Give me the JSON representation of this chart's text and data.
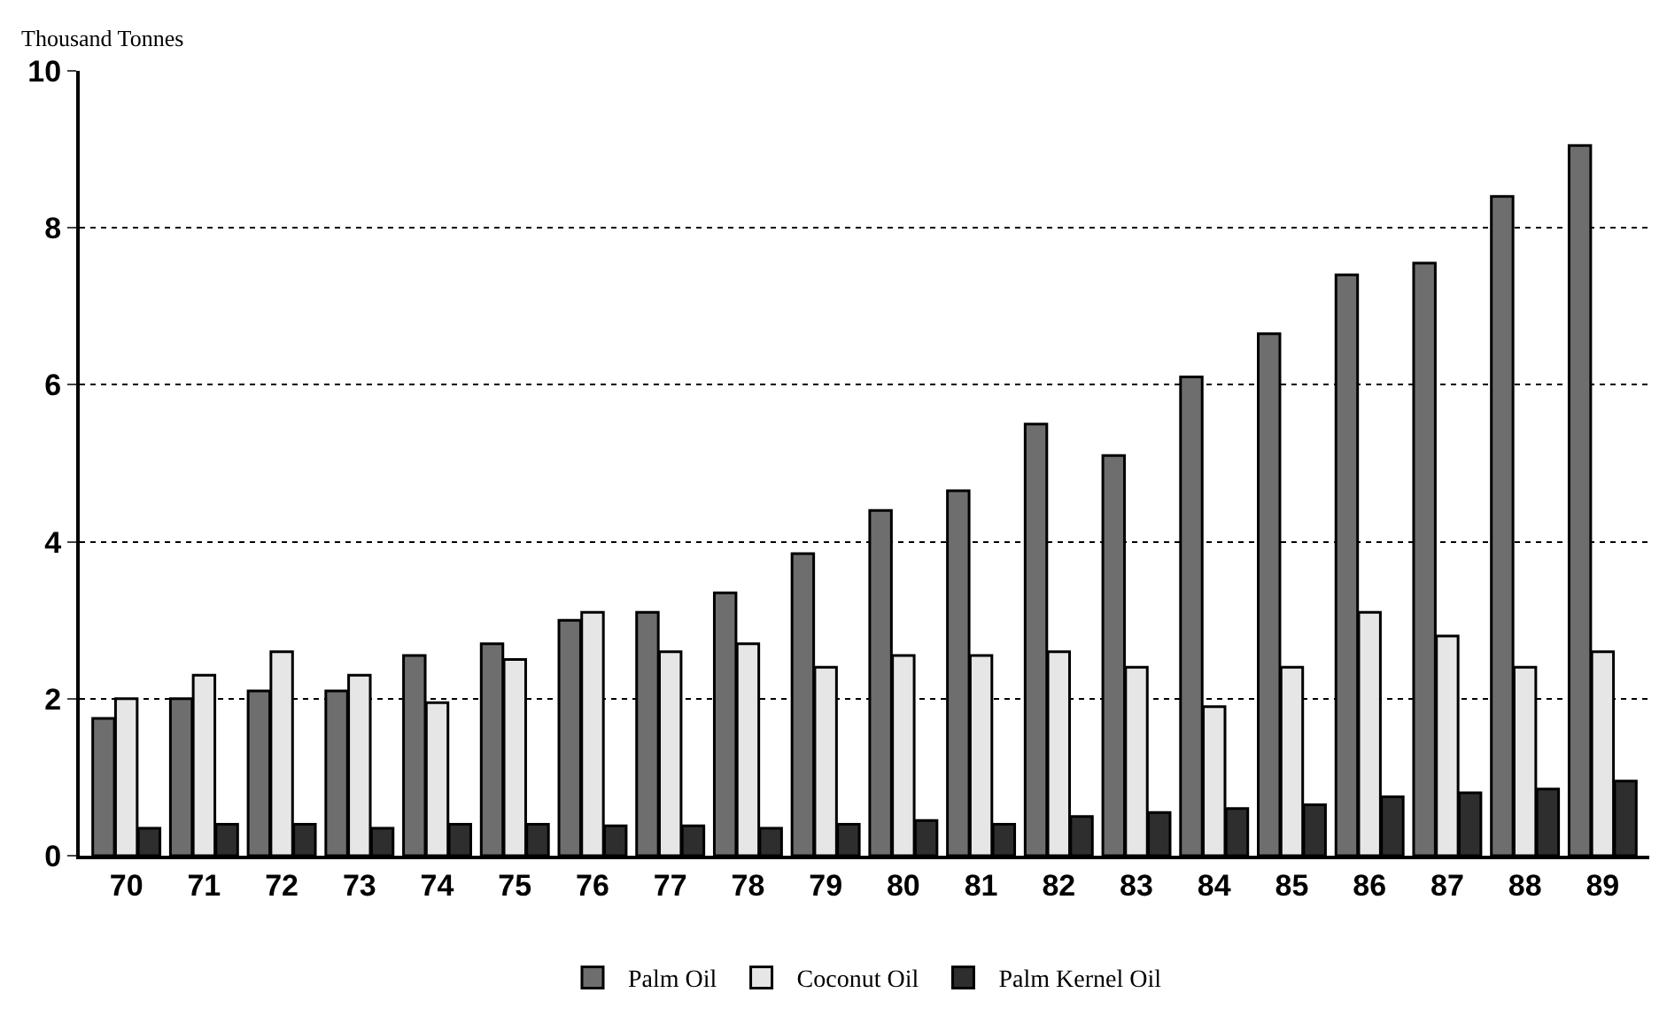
{
  "chart_data": {
    "type": "bar",
    "ylabel": "Thousand Tonnes",
    "categories": [
      "70",
      "71",
      "72",
      "73",
      "74",
      "75",
      "76",
      "77",
      "78",
      "79",
      "80",
      "81",
      "82",
      "83",
      "84",
      "85",
      "86",
      "87",
      "88",
      "89"
    ],
    "series": [
      {
        "name": "Palm Oil",
        "color": "#6e6e6e",
        "values": [
          1.75,
          2.0,
          2.1,
          2.1,
          2.55,
          2.7,
          3.0,
          3.1,
          3.35,
          3.85,
          4.4,
          4.65,
          5.5,
          5.1,
          6.1,
          6.65,
          7.4,
          7.55,
          8.4,
          9.05
        ]
      },
      {
        "name": "Coconut Oil",
        "color": "#e6e6e6",
        "values": [
          2.0,
          2.3,
          2.6,
          2.3,
          1.95,
          2.5,
          3.1,
          2.6,
          2.7,
          2.4,
          2.55,
          2.55,
          2.6,
          2.4,
          1.9,
          2.4,
          3.1,
          2.8,
          2.4,
          2.6
        ]
      },
      {
        "name": "Palm Kernel Oil",
        "color": "#2e2e2e",
        "values": [
          0.35,
          0.4,
          0.4,
          0.35,
          0.4,
          0.4,
          0.38,
          0.38,
          0.35,
          0.4,
          0.45,
          0.4,
          0.5,
          0.55,
          0.6,
          0.65,
          0.75,
          0.8,
          0.85,
          0.95
        ]
      }
    ],
    "ylim": [
      0,
      10
    ],
    "yticks": [
      0,
      2,
      4,
      6,
      8,
      10
    ],
    "grid": "y",
    "legend": "bottom"
  }
}
